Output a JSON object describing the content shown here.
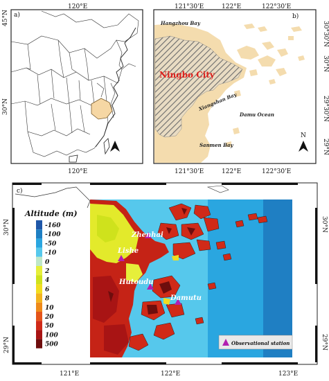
{
  "panel_a": {
    "label": "a)",
    "top_lon": "120°E",
    "bottom_lon": "120°E",
    "lat_top": "45°N",
    "lat_mid": "30°N"
  },
  "panel_b": {
    "label": "b)",
    "top_lons": [
      "121°30'E",
      "122°E",
      "122°30'E"
    ],
    "bottom_lons": [
      "121°30'E",
      "122°E",
      "122°30'E"
    ],
    "right_lats": [
      "30°30'N",
      "30°N",
      "29°30'N",
      "29°N"
    ],
    "city": "Ningbo City",
    "places": {
      "hangzhou_bay": "Hangzhou Bay",
      "xiangshan_bay": "Xiangshan Bay",
      "damu_ocean": "Damu Ocean",
      "sanmen_bay": "Sanmen Bay"
    },
    "north": "N"
  },
  "panel_c": {
    "label": "c)",
    "left_lats": [
      "30°N",
      "29°N"
    ],
    "right_lats": [
      "30°N",
      "29°N"
    ],
    "bottom_lons": [
      "121°E",
      "122°E",
      "123°E"
    ],
    "legend_title": "Altitude (m)",
    "legend_items": [
      {
        "label": "-160",
        "color": "#1f57a8"
      },
      {
        "label": "-100",
        "color": "#1f7fc3"
      },
      {
        "label": "-50",
        "color": "#2aa6e0"
      },
      {
        "label": "-10",
        "color": "#56c8ec"
      },
      {
        "label": "0",
        "color": "#bfe7c8"
      },
      {
        "label": "2",
        "color": "#e6ef3a"
      },
      {
        "label": "4",
        "color": "#cfe21c"
      },
      {
        "label": "6",
        "color": "#f2dd1f"
      },
      {
        "label": "8",
        "color": "#f3b41e"
      },
      {
        "label": "10",
        "color": "#ee8a1a"
      },
      {
        "label": "20",
        "color": "#e4541a"
      },
      {
        "label": "50",
        "color": "#d02a18"
      },
      {
        "label": "100",
        "color": "#a81414"
      },
      {
        "label": "500",
        "color": "#6e0d0d"
      }
    ],
    "stations": [
      "Zhenhai",
      "Lishe",
      "Hutoudu",
      "Damutu"
    ],
    "station_legend": "Observational station",
    "colors": {
      "station": "#b21fb1",
      "station_label": "#ffffff",
      "title": "#e0201c"
    }
  }
}
